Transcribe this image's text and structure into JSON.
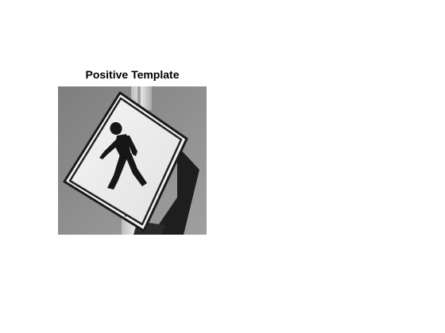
{
  "figure": {
    "title": "Positive Template",
    "image_description_name": "pedestrian-crossing-sign"
  },
  "colors": {
    "background": "#ffffff",
    "photo_sky": "#8c8c8c",
    "sign_face": "#efefef",
    "sign_border": "#111111",
    "pole": "#d6d6d6",
    "shadow": "#1a1a1a"
  }
}
